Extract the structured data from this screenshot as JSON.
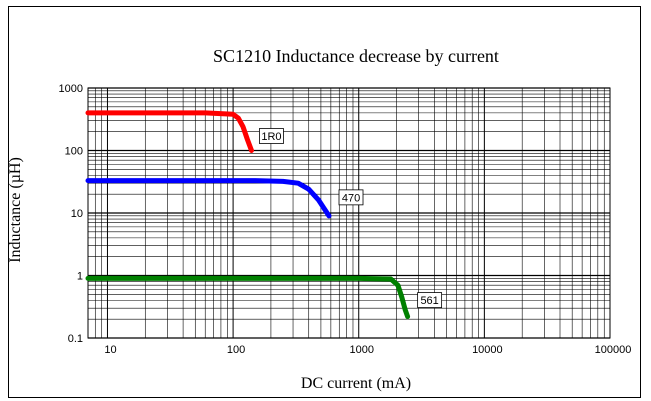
{
  "chart_data": {
    "type": "line",
    "title": "SC1210 Inductance decrease by current",
    "xlabel": "DC current (mA)",
    "ylabel": "Inductance (µH)",
    "x_scale": "log",
    "y_scale": "log",
    "xlim": [
      7,
      100000
    ],
    "ylim": [
      0.1,
      1000
    ],
    "x_ticks": [
      10,
      100,
      1000,
      10000,
      100000
    ],
    "x_tick_labels": [
      "10",
      "100",
      "1000",
      "10000",
      "100000"
    ],
    "y_ticks": [
      0.1,
      1,
      10,
      100,
      1000
    ],
    "y_tick_labels": [
      "0.1",
      "1",
      "10",
      "100",
      "1000"
    ],
    "grid": true,
    "legend": "none",
    "series": [
      {
        "name": "1R0",
        "color": "#ff0000",
        "x": [
          7,
          20,
          60,
          100,
          110,
          120,
          130,
          140
        ],
        "y": [
          400,
          400,
          400,
          380,
          330,
          240,
          150,
          100
        ]
      },
      {
        "name": "470",
        "color": "#0000ff",
        "x": [
          7,
          30,
          150,
          250,
          330,
          400,
          480,
          560,
          580
        ],
        "y": [
          33,
          33,
          33,
          32,
          30,
          24,
          16,
          10,
          9
        ]
      },
      {
        "name": "561",
        "color": "#008000",
        "x": [
          7,
          100,
          1000,
          1800,
          2050,
          2200,
          2350,
          2450
        ],
        "y": [
          0.9,
          0.9,
          0.9,
          0.88,
          0.7,
          0.45,
          0.28,
          0.22
        ]
      }
    ]
  }
}
